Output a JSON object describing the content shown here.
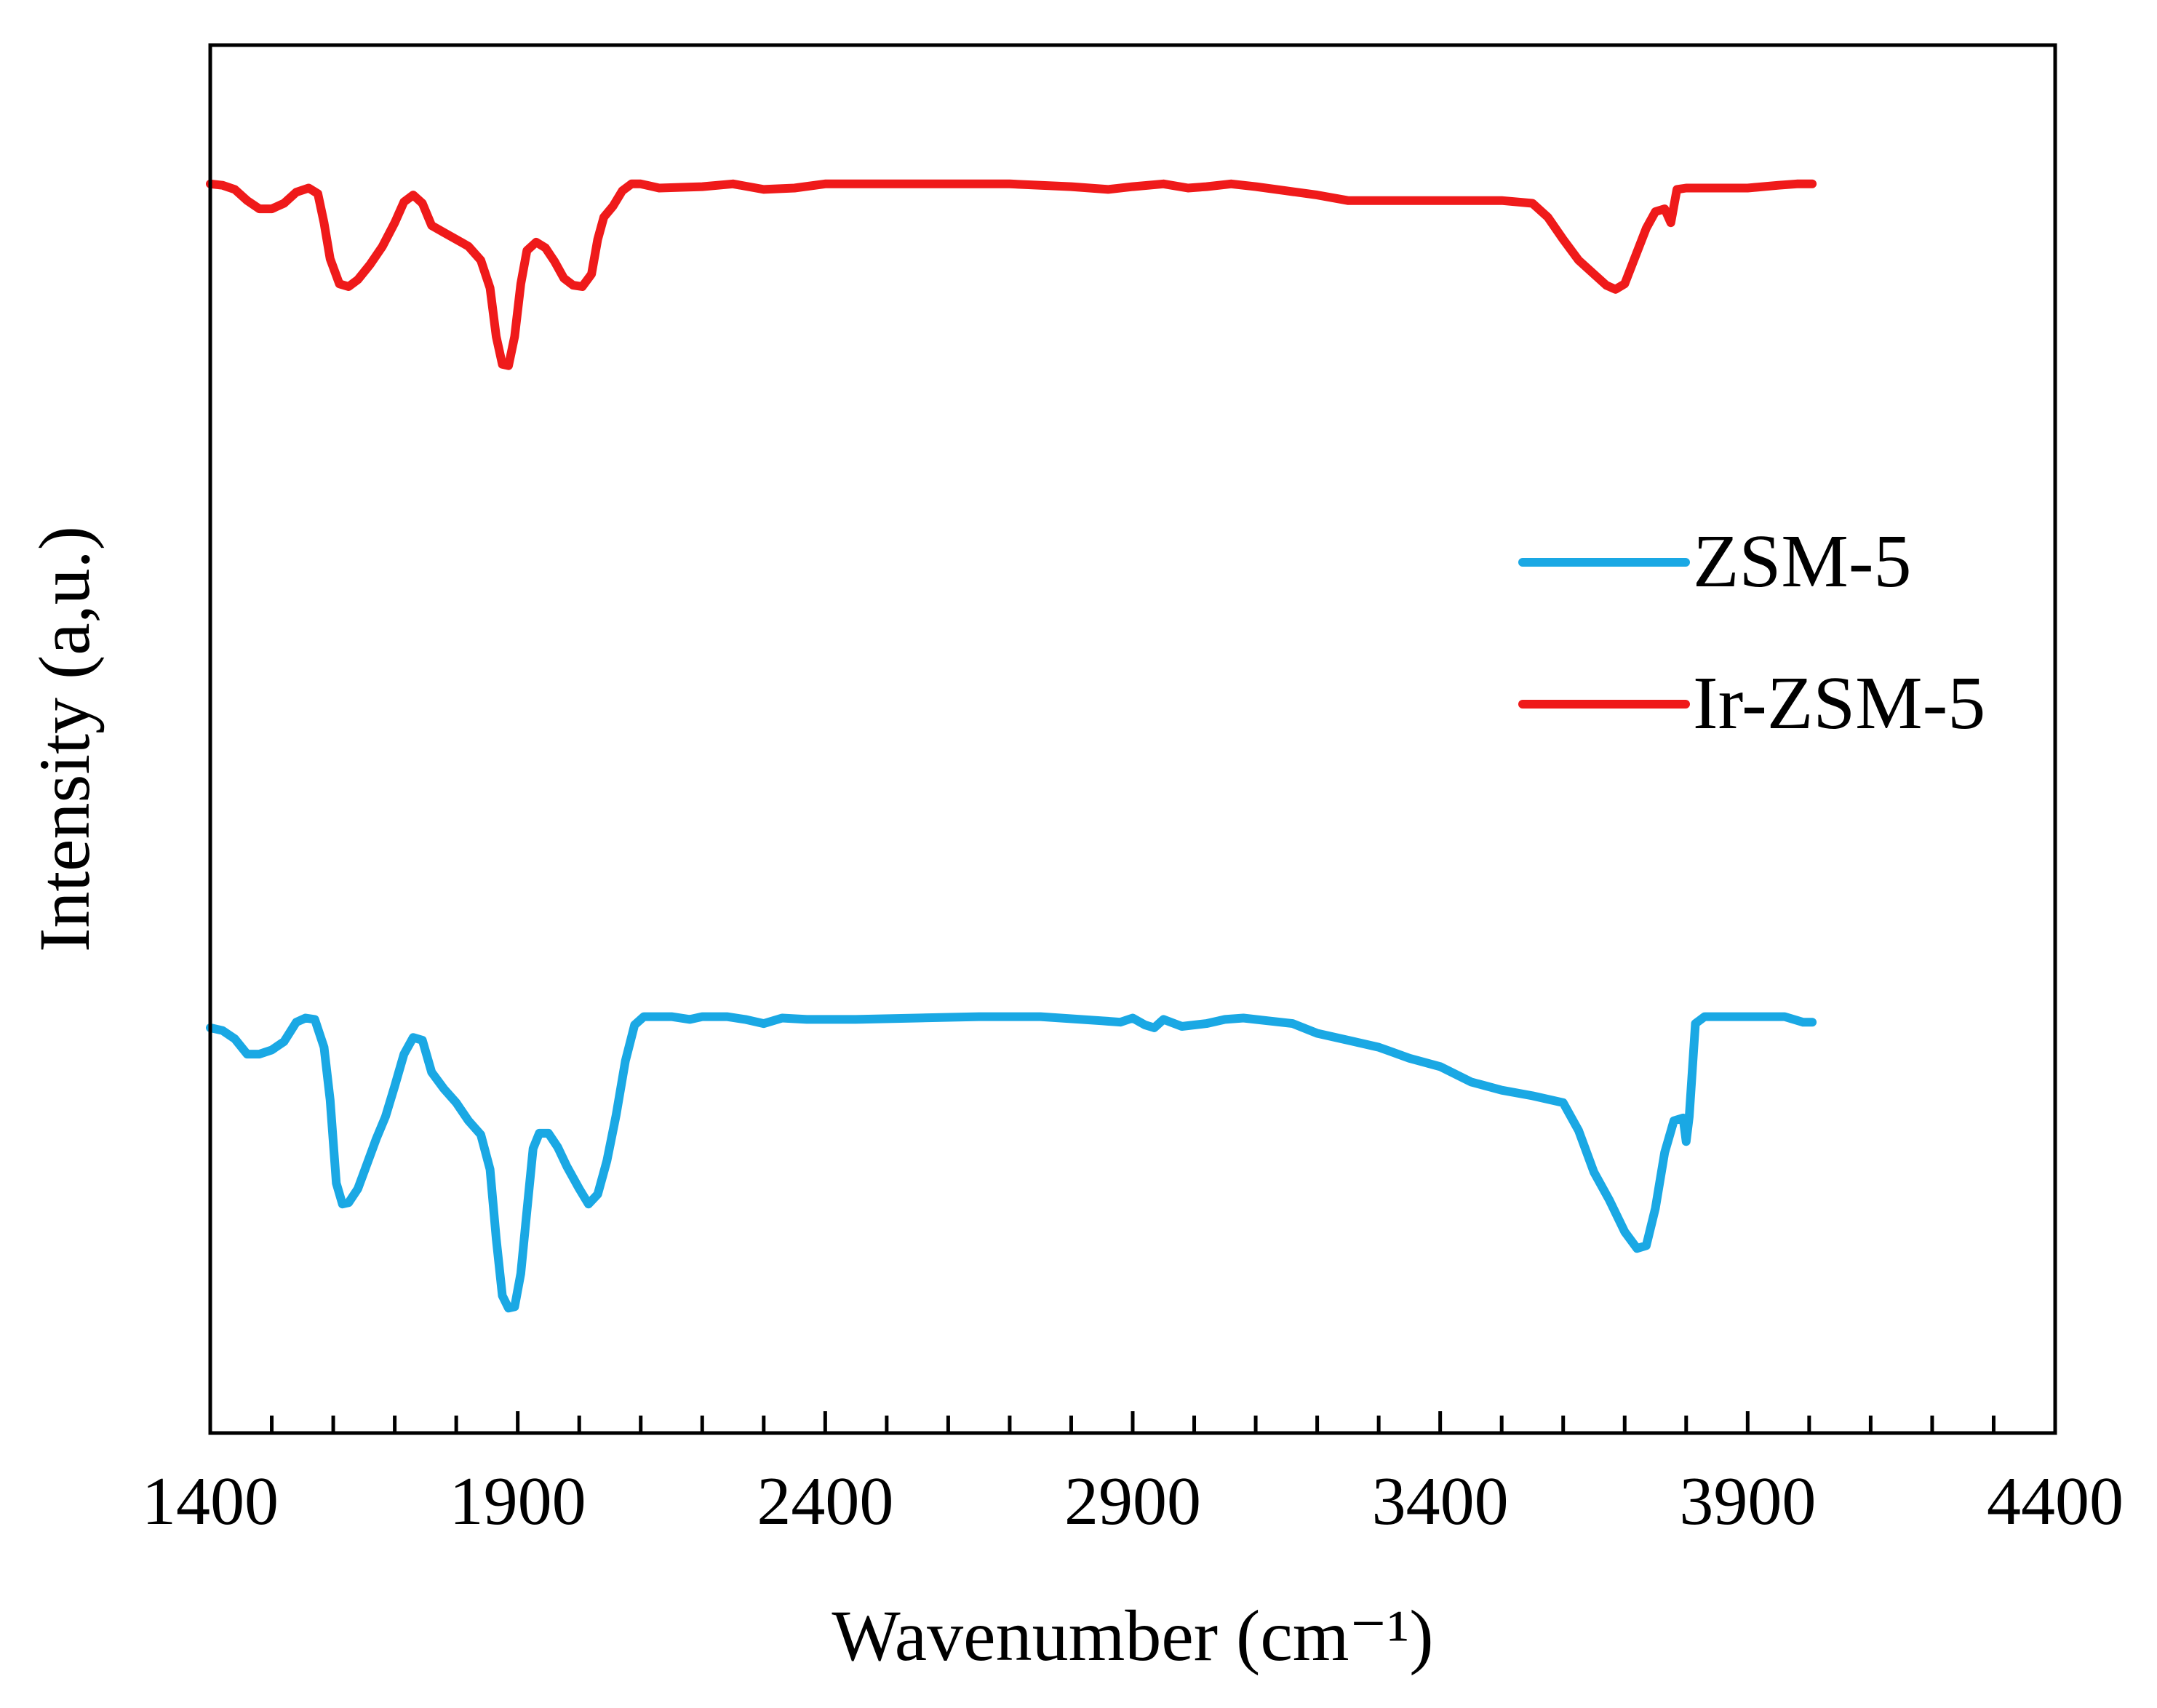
{
  "chart_data": {
    "type": "line",
    "title": "",
    "xlabel": "Wavenumber (cm⁻¹)",
    "ylabel": "Intensity (a,u.)",
    "xlim": [
      1400,
      4400
    ],
    "ylim": [
      0,
      100
    ],
    "x_ticks_major": [
      1400,
      1900,
      2400,
      2900,
      3400,
      3900,
      4400
    ],
    "x_tick_labels": [
      "1400",
      "1900",
      "2400",
      "2900",
      "3400",
      "3900",
      "4400"
    ],
    "x_tick_minor_step": 100,
    "grid": false,
    "legend": {
      "position": "center-right",
      "entries": [
        "ZSM-5",
        "Ir-ZSM-5"
      ]
    },
    "series": [
      {
        "name": "ZSM-5",
        "color": "#1aa8e4",
        "points": [
          [
            1400,
            29.2
          ],
          [
            1420,
            29.0
          ],
          [
            1440,
            28.4
          ],
          [
            1460,
            27.3
          ],
          [
            1480,
            27.3
          ],
          [
            1500,
            27.6
          ],
          [
            1520,
            28.2
          ],
          [
            1540,
            29.6
          ],
          [
            1555,
            29.9
          ],
          [
            1570,
            29.8
          ],
          [
            1585,
            27.8
          ],
          [
            1595,
            24.0
          ],
          [
            1605,
            18.0
          ],
          [
            1615,
            16.5
          ],
          [
            1625,
            16.6
          ],
          [
            1640,
            17.6
          ],
          [
            1655,
            19.4
          ],
          [
            1670,
            21.2
          ],
          [
            1685,
            22.8
          ],
          [
            1700,
            25.0
          ],
          [
            1715,
            27.3
          ],
          [
            1730,
            28.5
          ],
          [
            1745,
            28.3
          ],
          [
            1760,
            26.0
          ],
          [
            1780,
            24.8
          ],
          [
            1800,
            23.8
          ],
          [
            1820,
            22.5
          ],
          [
            1840,
            21.5
          ],
          [
            1855,
            19.0
          ],
          [
            1865,
            14.0
          ],
          [
            1875,
            9.9
          ],
          [
            1885,
            9.0
          ],
          [
            1895,
            9.1
          ],
          [
            1905,
            11.5
          ],
          [
            1915,
            16.0
          ],
          [
            1925,
            20.5
          ],
          [
            1935,
            21.6
          ],
          [
            1950,
            21.6
          ],
          [
            1965,
            20.6
          ],
          [
            1980,
            19.2
          ],
          [
            2000,
            17.6
          ],
          [
            2015,
            16.5
          ],
          [
            2030,
            17.2
          ],
          [
            2045,
            19.6
          ],
          [
            2060,
            22.9
          ],
          [
            2075,
            26.8
          ],
          [
            2090,
            29.4
          ],
          [
            2105,
            30.0
          ],
          [
            2150,
            30.0
          ],
          [
            2180,
            29.8
          ],
          [
            2200,
            30.0
          ],
          [
            2240,
            30.0
          ],
          [
            2270,
            29.8
          ],
          [
            2300,
            29.5
          ],
          [
            2330,
            29.9
          ],
          [
            2370,
            29.8
          ],
          [
            2450,
            29.8
          ],
          [
            2550,
            29.9
          ],
          [
            2650,
            30.0
          ],
          [
            2750,
            30.0
          ],
          [
            2850,
            29.7
          ],
          [
            2880,
            29.6
          ],
          [
            2900,
            29.9
          ],
          [
            2920,
            29.4
          ],
          [
            2935,
            29.2
          ],
          [
            2950,
            29.8
          ],
          [
            2980,
            29.3
          ],
          [
            3020,
            29.5
          ],
          [
            3050,
            29.8
          ],
          [
            3080,
            29.9
          ],
          [
            3120,
            29.7
          ],
          [
            3160,
            29.5
          ],
          [
            3200,
            28.8
          ],
          [
            3250,
            28.3
          ],
          [
            3300,
            27.8
          ],
          [
            3350,
            27.0
          ],
          [
            3400,
            26.4
          ],
          [
            3450,
            25.3
          ],
          [
            3500,
            24.7
          ],
          [
            3550,
            24.3
          ],
          [
            3600,
            23.8
          ],
          [
            3625,
            21.8
          ],
          [
            3650,
            18.8
          ],
          [
            3675,
            16.8
          ],
          [
            3700,
            14.5
          ],
          [
            3720,
            13.3
          ],
          [
            3735,
            13.5
          ],
          [
            3750,
            16.2
          ],
          [
            3765,
            20.2
          ],
          [
            3780,
            22.5
          ],
          [
            3795,
            22.7
          ],
          [
            3800,
            21.0
          ],
          [
            3805,
            22.8
          ],
          [
            3815,
            29.5
          ],
          [
            3830,
            30.0
          ],
          [
            3900,
            30.0
          ],
          [
            3960,
            30.0
          ],
          [
            3990,
            29.6
          ],
          [
            4005,
            29.6
          ]
        ]
      },
      {
        "name": "Ir-ZSM-5",
        "color": "#ef1a1a",
        "points": [
          [
            1400,
            90.0
          ],
          [
            1420,
            89.9
          ],
          [
            1440,
            89.6
          ],
          [
            1460,
            88.8
          ],
          [
            1480,
            88.2
          ],
          [
            1500,
            88.2
          ],
          [
            1520,
            88.6
          ],
          [
            1540,
            89.4
          ],
          [
            1560,
            89.7
          ],
          [
            1575,
            89.3
          ],
          [
            1585,
            87.2
          ],
          [
            1595,
            84.6
          ],
          [
            1610,
            82.8
          ],
          [
            1625,
            82.6
          ],
          [
            1640,
            83.1
          ],
          [
            1660,
            84.2
          ],
          [
            1680,
            85.5
          ],
          [
            1700,
            87.2
          ],
          [
            1715,
            88.7
          ],
          [
            1730,
            89.2
          ],
          [
            1745,
            88.6
          ],
          [
            1760,
            87.0
          ],
          [
            1780,
            86.5
          ],
          [
            1800,
            86.0
          ],
          [
            1820,
            85.5
          ],
          [
            1840,
            84.5
          ],
          [
            1855,
            82.5
          ],
          [
            1865,
            79.0
          ],
          [
            1875,
            77.0
          ],
          [
            1885,
            76.9
          ],
          [
            1895,
            79.0
          ],
          [
            1905,
            82.8
          ],
          [
            1915,
            85.2
          ],
          [
            1930,
            85.8
          ],
          [
            1945,
            85.4
          ],
          [
            1960,
            84.4
          ],
          [
            1975,
            83.2
          ],
          [
            1990,
            82.7
          ],
          [
            2005,
            82.6
          ],
          [
            2020,
            83.5
          ],
          [
            2030,
            86.0
          ],
          [
            2040,
            87.6
          ],
          [
            2055,
            88.4
          ],
          [
            2070,
            89.5
          ],
          [
            2085,
            90.0
          ],
          [
            2100,
            90.0
          ],
          [
            2130,
            89.7
          ],
          [
            2200,
            89.8
          ],
          [
            2250,
            90.0
          ],
          [
            2300,
            89.6
          ],
          [
            2350,
            89.7
          ],
          [
            2400,
            90.0
          ],
          [
            2500,
            90.0
          ],
          [
            2600,
            90.0
          ],
          [
            2700,
            90.0
          ],
          [
            2800,
            89.8
          ],
          [
            2860,
            89.6
          ],
          [
            2900,
            89.8
          ],
          [
            2950,
            90.0
          ],
          [
            2990,
            89.7
          ],
          [
            3020,
            89.8
          ],
          [
            3060,
            90.0
          ],
          [
            3100,
            89.8
          ],
          [
            3150,
            89.5
          ],
          [
            3200,
            89.2
          ],
          [
            3250,
            88.8
          ],
          [
            3300,
            88.8
          ],
          [
            3400,
            88.8
          ],
          [
            3500,
            88.8
          ],
          [
            3550,
            88.6
          ],
          [
            3575,
            87.6
          ],
          [
            3600,
            86.0
          ],
          [
            3625,
            84.5
          ],
          [
            3650,
            83.5
          ],
          [
            3670,
            82.7
          ],
          [
            3685,
            82.4
          ],
          [
            3700,
            82.8
          ],
          [
            3715,
            84.5
          ],
          [
            3735,
            86.8
          ],
          [
            3750,
            88.0
          ],
          [
            3765,
            88.2
          ],
          [
            3775,
            87.2
          ],
          [
            3785,
            89.6
          ],
          [
            3800,
            89.7
          ],
          [
            3850,
            89.7
          ],
          [
            3900,
            89.7
          ],
          [
            3950,
            89.9
          ],
          [
            3980,
            90.0
          ],
          [
            4005,
            90.0
          ]
        ]
      }
    ]
  }
}
